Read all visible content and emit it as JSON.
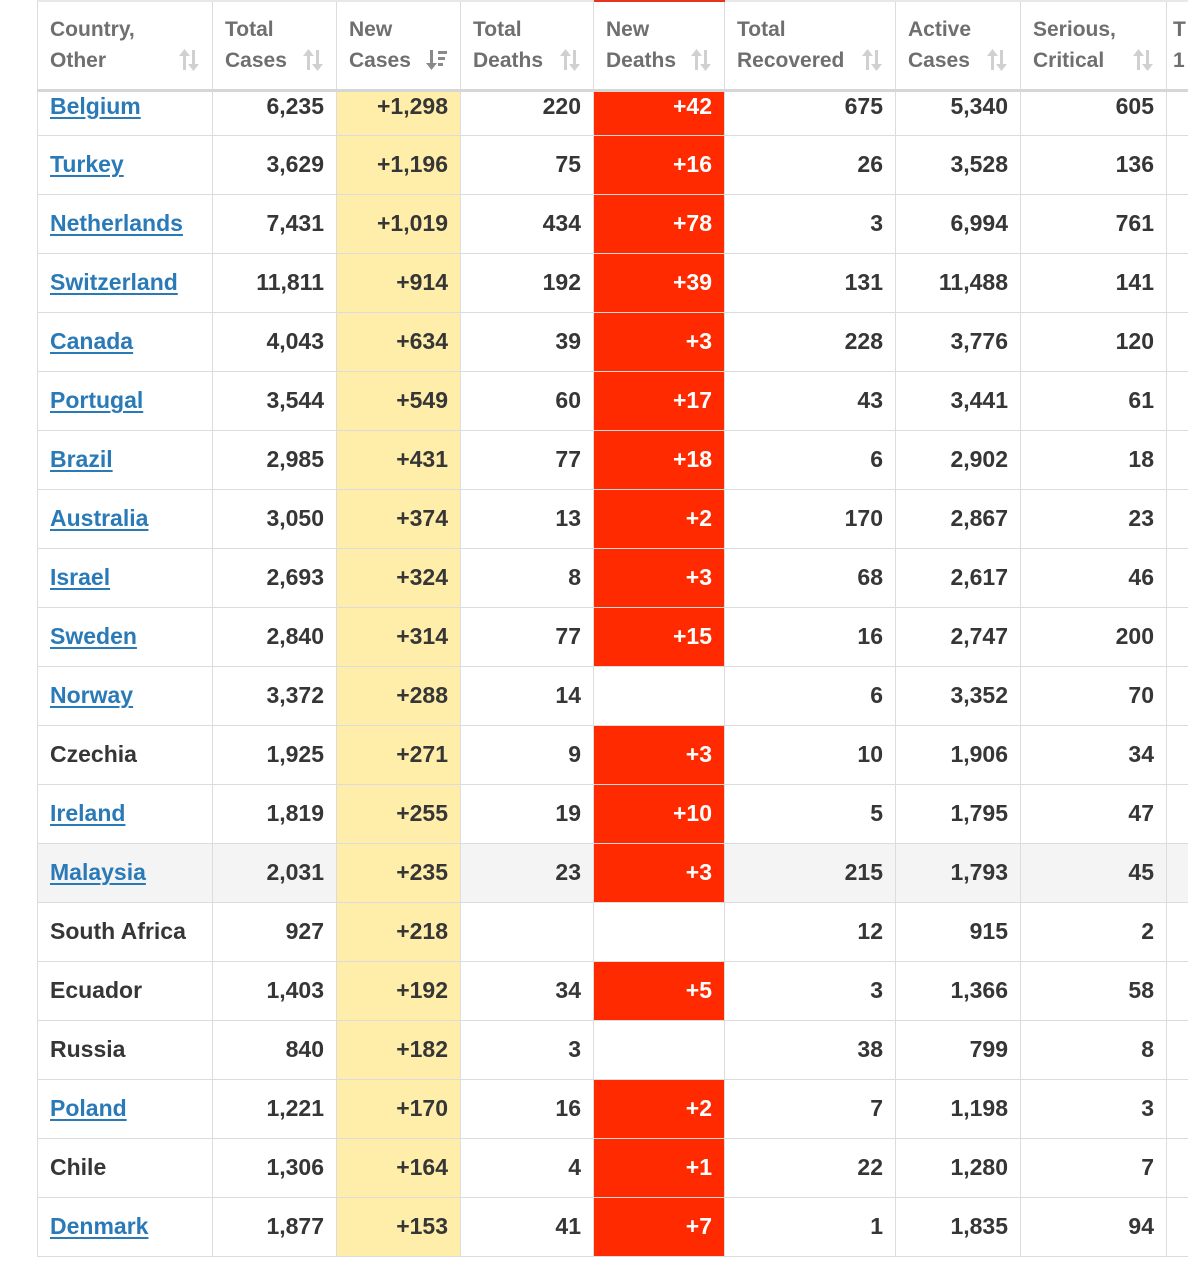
{
  "columns": {
    "country": [
      "Country,",
      "Other"
    ],
    "total_cases": [
      "Total",
      "Cases"
    ],
    "new_cases": [
      "New",
      "Cases"
    ],
    "total_deaths": [
      "Total",
      "Deaths"
    ],
    "new_deaths": [
      "New",
      "Deaths"
    ],
    "total_recovered": [
      "Total",
      "Recovered"
    ],
    "active_cases": [
      "Active",
      "Cases"
    ],
    "serious_critical": [
      "Serious,",
      "Critical"
    ],
    "extra_partial": [
      "T",
      "1"
    ]
  },
  "sort": {
    "column": "new_cases",
    "direction": "descending"
  },
  "colors": {
    "new_cases_bg": "#ffeeaa",
    "new_deaths_bg": "#ff2a00",
    "link": "#2a7ab8",
    "text": "#363636",
    "header_text": "#6f6f6f"
  },
  "rows": [
    {
      "country": "Belgium",
      "link": true,
      "total_cases": "6,235",
      "new_cases": "+1,298",
      "total_deaths": "220",
      "new_deaths": "+42",
      "total_recovered": "675",
      "active_cases": "5,340",
      "serious_critical": "605"
    },
    {
      "country": "Turkey",
      "link": true,
      "total_cases": "3,629",
      "new_cases": "+1,196",
      "total_deaths": "75",
      "new_deaths": "+16",
      "total_recovered": "26",
      "active_cases": "3,528",
      "serious_critical": "136"
    },
    {
      "country": "Netherlands",
      "link": true,
      "total_cases": "7,431",
      "new_cases": "+1,019",
      "total_deaths": "434",
      "new_deaths": "+78",
      "total_recovered": "3",
      "active_cases": "6,994",
      "serious_critical": "761"
    },
    {
      "country": "Switzerland",
      "link": true,
      "total_cases": "11,811",
      "new_cases": "+914",
      "total_deaths": "192",
      "new_deaths": "+39",
      "total_recovered": "131",
      "active_cases": "11,488",
      "serious_critical": "141"
    },
    {
      "country": "Canada",
      "link": true,
      "total_cases": "4,043",
      "new_cases": "+634",
      "total_deaths": "39",
      "new_deaths": "+3",
      "total_recovered": "228",
      "active_cases": "3,776",
      "serious_critical": "120"
    },
    {
      "country": "Portugal",
      "link": true,
      "total_cases": "3,544",
      "new_cases": "+549",
      "total_deaths": "60",
      "new_deaths": "+17",
      "total_recovered": "43",
      "active_cases": "3,441",
      "serious_critical": "61"
    },
    {
      "country": "Brazil",
      "link": true,
      "total_cases": "2,985",
      "new_cases": "+431",
      "total_deaths": "77",
      "new_deaths": "+18",
      "total_recovered": "6",
      "active_cases": "2,902",
      "serious_critical": "18"
    },
    {
      "country": "Australia",
      "link": true,
      "total_cases": "3,050",
      "new_cases": "+374",
      "total_deaths": "13",
      "new_deaths": "+2",
      "total_recovered": "170",
      "active_cases": "2,867",
      "serious_critical": "23"
    },
    {
      "country": "Israel",
      "link": true,
      "total_cases": "2,693",
      "new_cases": "+324",
      "total_deaths": "8",
      "new_deaths": "+3",
      "total_recovered": "68",
      "active_cases": "2,617",
      "serious_critical": "46"
    },
    {
      "country": "Sweden",
      "link": true,
      "total_cases": "2,840",
      "new_cases": "+314",
      "total_deaths": "77",
      "new_deaths": "+15",
      "total_recovered": "16",
      "active_cases": "2,747",
      "serious_critical": "200"
    },
    {
      "country": "Norway",
      "link": true,
      "total_cases": "3,372",
      "new_cases": "+288",
      "total_deaths": "14",
      "new_deaths": "",
      "total_recovered": "6",
      "active_cases": "3,352",
      "serious_critical": "70"
    },
    {
      "country": "Czechia",
      "link": false,
      "total_cases": "1,925",
      "new_cases": "+271",
      "total_deaths": "9",
      "new_deaths": "+3",
      "total_recovered": "10",
      "active_cases": "1,906",
      "serious_critical": "34"
    },
    {
      "country": "Ireland",
      "link": true,
      "total_cases": "1,819",
      "new_cases": "+255",
      "total_deaths": "19",
      "new_deaths": "+10",
      "total_recovered": "5",
      "active_cases": "1,795",
      "serious_critical": "47"
    },
    {
      "country": "Malaysia",
      "link": true,
      "hover": true,
      "total_cases": "2,031",
      "new_cases": "+235",
      "total_deaths": "23",
      "new_deaths": "+3",
      "total_recovered": "215",
      "active_cases": "1,793",
      "serious_critical": "45"
    },
    {
      "country": "South Africa",
      "link": false,
      "total_cases": "927",
      "new_cases": "+218",
      "total_deaths": "",
      "new_deaths": "",
      "total_recovered": "12",
      "active_cases": "915",
      "serious_critical": "2"
    },
    {
      "country": "Ecuador",
      "link": false,
      "total_cases": "1,403",
      "new_cases": "+192",
      "total_deaths": "34",
      "new_deaths": "+5",
      "total_recovered": "3",
      "active_cases": "1,366",
      "serious_critical": "58"
    },
    {
      "country": "Russia",
      "link": false,
      "total_cases": "840",
      "new_cases": "+182",
      "total_deaths": "3",
      "new_deaths": "",
      "total_recovered": "38",
      "active_cases": "799",
      "serious_critical": "8"
    },
    {
      "country": "Poland",
      "link": true,
      "total_cases": "1,221",
      "new_cases": "+170",
      "total_deaths": "16",
      "new_deaths": "+2",
      "total_recovered": "7",
      "active_cases": "1,198",
      "serious_critical": "3"
    },
    {
      "country": "Chile",
      "link": false,
      "total_cases": "1,306",
      "new_cases": "+164",
      "total_deaths": "4",
      "new_deaths": "+1",
      "total_recovered": "22",
      "active_cases": "1,280",
      "serious_critical": "7"
    },
    {
      "country": "Denmark",
      "link": true,
      "total_cases": "1,877",
      "new_cases": "+153",
      "total_deaths": "41",
      "new_deaths": "+7",
      "total_recovered": "1",
      "active_cases": "1,835",
      "serious_critical": "94"
    }
  ]
}
